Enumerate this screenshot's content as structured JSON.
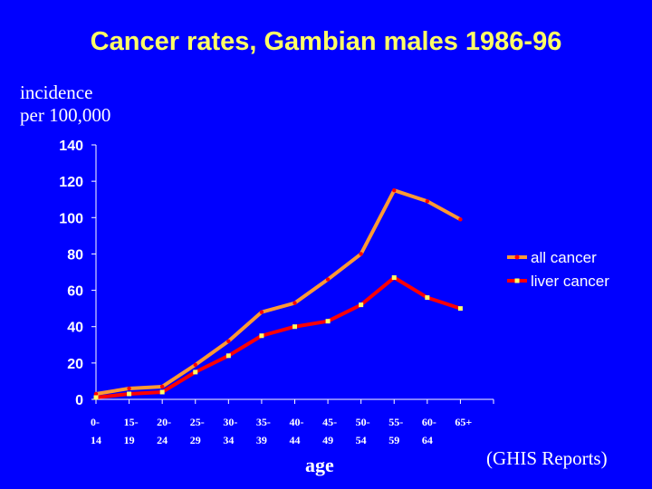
{
  "chart_data": {
    "type": "line",
    "title": "Cancer rates, Gambian males 1986-96",
    "ylabel_line1": "incidence",
    "ylabel_line2": "per 100,000",
    "xlabel": "age",
    "source_note": "(GHIS Reports)",
    "ylim": [
      0,
      140
    ],
    "yticks": [
      0,
      20,
      40,
      60,
      80,
      100,
      120,
      140
    ],
    "categories": [
      [
        "0-",
        "14"
      ],
      [
        "15-",
        "19"
      ],
      [
        "20-",
        "24"
      ],
      [
        "25-",
        "29"
      ],
      [
        "30-",
        "34"
      ],
      [
        "35-",
        "39"
      ],
      [
        "40-",
        "44"
      ],
      [
        "45-",
        "49"
      ],
      [
        "50-",
        "54"
      ],
      [
        "55-",
        "59"
      ],
      [
        "60-",
        "64"
      ],
      [
        "65+",
        ""
      ]
    ],
    "legend_position": "right",
    "series": [
      {
        "name": "all cancer",
        "color": "#ff9933",
        "marker_color": "#ff0000",
        "values": [
          3,
          6,
          7,
          19,
          32,
          48,
          53,
          66,
          80,
          115,
          109,
          99
        ]
      },
      {
        "name": "liver cancer",
        "color": "#ff0000",
        "marker_color": "#ffff66",
        "values": [
          1,
          3,
          4,
          15,
          24,
          35,
          40,
          43,
          52,
          67,
          56,
          50
        ]
      }
    ]
  }
}
